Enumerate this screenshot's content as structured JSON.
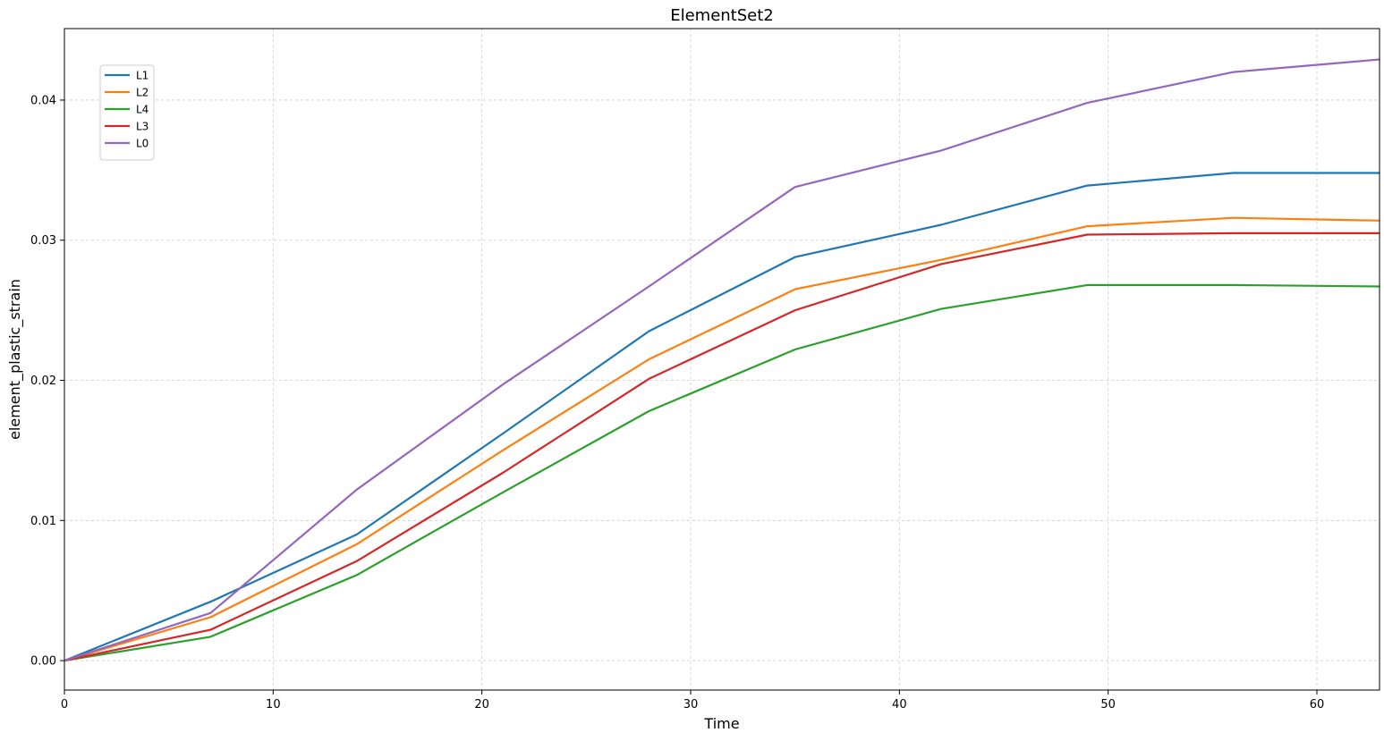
{
  "chart_data": {
    "type": "line",
    "title": "ElementSet2",
    "xlabel": "Time",
    "ylabel": "element_plastic_strain",
    "xlim": [
      0,
      63
    ],
    "ylim": [
      -0.0021,
      0.0451
    ],
    "grid": true,
    "legend_position": "top-left",
    "x_ticks": [
      0,
      10,
      20,
      30,
      40,
      50,
      60
    ],
    "x_tick_labels": [
      "0",
      "10",
      "20",
      "30",
      "40",
      "50",
      "60"
    ],
    "y_ticks": [
      0.0,
      0.01,
      0.02,
      0.03,
      0.04
    ],
    "y_tick_labels": [
      "0.00",
      "0.01",
      "0.02",
      "0.03",
      "0.04"
    ],
    "series": [
      {
        "name": "L1",
        "color": "#1f77b4",
        "x": [
          0,
          7,
          14,
          21,
          28,
          35,
          42,
          49,
          56,
          63
        ],
        "y": [
          0.0,
          0.0042,
          0.009,
          0.0162,
          0.0235,
          0.0288,
          0.0311,
          0.0339,
          0.0348,
          0.0348
        ]
      },
      {
        "name": "L2",
        "color": "#ff7f0e",
        "x": [
          0,
          7,
          14,
          21,
          28,
          35,
          42,
          49,
          56,
          63
        ],
        "y": [
          0.0,
          0.0031,
          0.0083,
          0.015,
          0.0215,
          0.0265,
          0.0286,
          0.031,
          0.0316,
          0.0314
        ]
      },
      {
        "name": "L4",
        "color": "#2ca02c",
        "x": [
          0,
          7,
          14,
          21,
          28,
          35,
          42,
          49,
          56,
          63
        ],
        "y": [
          0.0,
          0.0017,
          0.0061,
          0.012,
          0.0178,
          0.0222,
          0.0251,
          0.0268,
          0.0268,
          0.0267
        ]
      },
      {
        "name": "L3",
        "color": "#d62728",
        "x": [
          0,
          7,
          14,
          21,
          28,
          35,
          42,
          49,
          56,
          63
        ],
        "y": [
          0.0,
          0.0022,
          0.0071,
          0.0134,
          0.0201,
          0.025,
          0.0283,
          0.0304,
          0.0305,
          0.0305
        ]
      },
      {
        "name": "L0",
        "color": "#9467bd",
        "x": [
          0,
          7,
          14,
          21,
          28,
          35,
          42,
          49,
          56,
          63
        ],
        "y": [
          0.0,
          0.0034,
          0.0122,
          0.0197,
          0.0267,
          0.0338,
          0.0364,
          0.0398,
          0.042,
          0.0429
        ]
      }
    ]
  }
}
